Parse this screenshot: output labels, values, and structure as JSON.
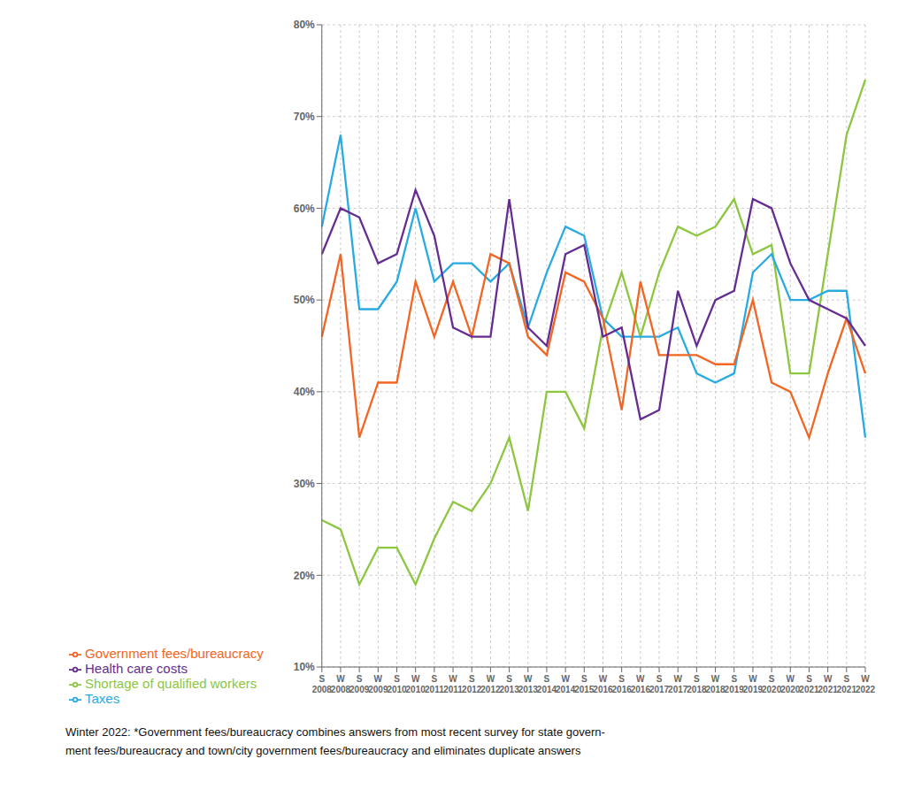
{
  "chart_data": {
    "type": "line",
    "categories": [
      "S\n2008",
      "W\n2008",
      "S\n2009",
      "W\n2009",
      "S\n2010",
      "W\n2010",
      "S\n2011",
      "W\n2011",
      "S\n2012",
      "W\n2012",
      "S\n2013",
      "W\n2013",
      "S\n2014",
      "W\n2014",
      "S\n2015",
      "W\n2016",
      "S\n2016",
      "W\n2016",
      "S\n2017",
      "W\n2017",
      "S\n2018",
      "W\n2018",
      "S\n2019",
      "W\n2019",
      "S\n2020",
      "W\n2020",
      "S\n2021",
      "W\n2021",
      "S\n2021",
      "W\n2022"
    ],
    "series": [
      {
        "name": "Shortage of qualified workers",
        "color": "#8dc63f",
        "values": [
          26,
          25,
          19,
          23,
          23,
          19,
          24,
          28,
          27,
          30,
          35,
          27,
          40,
          40,
          36,
          47,
          53,
          46,
          53,
          58,
          57,
          58,
          61,
          55,
          56,
          42,
          42,
          55,
          68,
          74
        ]
      },
      {
        "name": "Taxes",
        "color": "#29abe2",
        "values": [
          58,
          68,
          49,
          49,
          52,
          60,
          52,
          54,
          54,
          52,
          54,
          47,
          53,
          58,
          57,
          48,
          46,
          46,
          46,
          47,
          42,
          41,
          42,
          53,
          55,
          50,
          50,
          51,
          51,
          35
        ]
      },
      {
        "name": "Government fees/bureaucracy",
        "color": "#f26522",
        "values": [
          46,
          55,
          35,
          41,
          41,
          52,
          46,
          52,
          46,
          55,
          54,
          46,
          44,
          53,
          52,
          48,
          38,
          52,
          44,
          44,
          44,
          43,
          43,
          50,
          41,
          40,
          35,
          42,
          48,
          42
        ]
      },
      {
        "name": "Health care costs",
        "color": "#662d91",
        "values": [
          55,
          60,
          59,
          54,
          55,
          62,
          57,
          47,
          46,
          46,
          61,
          47,
          45,
          55,
          56,
          46,
          47,
          37,
          38,
          51,
          45,
          50,
          51,
          61,
          60,
          54,
          50,
          49,
          48,
          45
        ]
      }
    ],
    "ylim": [
      10,
      80
    ],
    "yticks": [
      {
        "value": 10,
        "label": "10%"
      },
      {
        "value": 20,
        "label": "20%"
      },
      {
        "value": 30,
        "label": "30%"
      },
      {
        "value": 40,
        "label": "40%"
      },
      {
        "value": 50,
        "label": "50%"
      },
      {
        "value": 60,
        "label": "60%"
      },
      {
        "value": 70,
        "label": "70%"
      },
      {
        "value": 80,
        "label": "80%"
      }
    ],
    "grid": true,
    "legend": "bottom",
    "annotations": [
      "Winter 2022: *Government fees/bureaucracy combines answers from most recent survey for state govern-",
      "ment fees/bureaucracy and town/city government fees/bureaucracy and eliminates duplicate answers"
    ]
  }
}
